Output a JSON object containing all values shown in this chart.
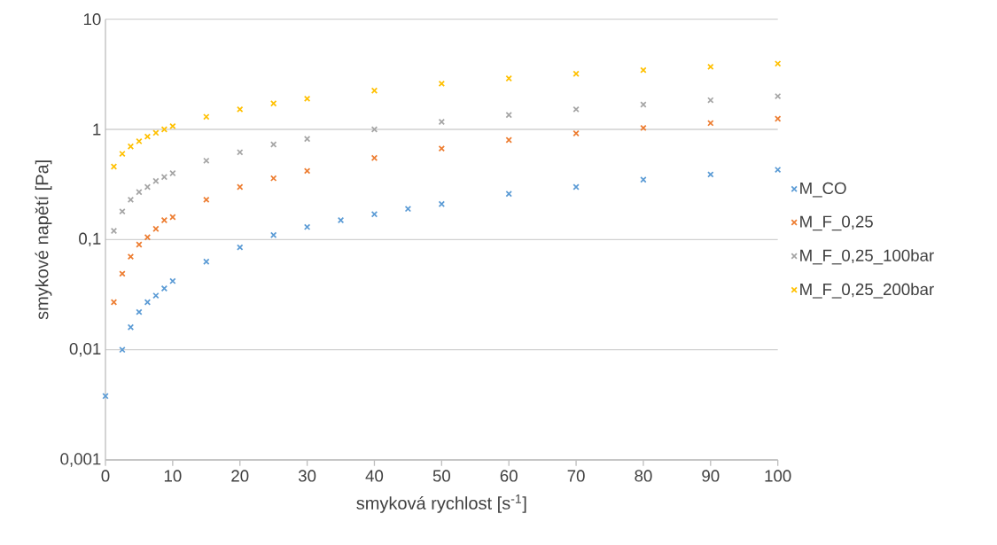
{
  "chart_data": {
    "type": "scatter",
    "xlabel": "smyková rychlost [s$^{-1}$]",
    "ylabel": "smykové napětí [Pa]",
    "xlim": [
      0,
      100
    ],
    "xticks": [
      0,
      10,
      20,
      30,
      40,
      50,
      60,
      70,
      80,
      90,
      100
    ],
    "ylim": [
      0.001,
      10
    ],
    "yticks": [
      {
        "value": 0.001,
        "label": "0,001"
      },
      {
        "value": 0.01,
        "label": "0,01"
      },
      {
        "value": 0.1,
        "label": "0,1"
      },
      {
        "value": 1,
        "label": "1"
      },
      {
        "value": 10,
        "label": "10"
      }
    ],
    "log": "y",
    "grid": "y",
    "legend": "right",
    "marker": "cross",
    "series": [
      {
        "name": "M_CO",
        "color": "#5b9bd5",
        "x": [
          0,
          2.5,
          3.75,
          5,
          6.25,
          7.5,
          8.75,
          10,
          15,
          20,
          25,
          30,
          35,
          40,
          45,
          50,
          60,
          70,
          80,
          90,
          100
        ],
        "values": [
          0.0038,
          0.01,
          0.016,
          0.022,
          0.027,
          0.031,
          0.036,
          0.042,
          0.063,
          0.085,
          0.11,
          0.13,
          0.15,
          0.17,
          0.19,
          0.21,
          0.26,
          0.3,
          0.35,
          0.39,
          0.43
        ]
      },
      {
        "name": "M_F_0,25",
        "color": "#ed7d31",
        "x": [
          1.25,
          2.5,
          3.75,
          5,
          6.25,
          7.5,
          8.75,
          10,
          15,
          20,
          25,
          30,
          40,
          50,
          60,
          70,
          80,
          90,
          100
        ],
        "values": [
          0.027,
          0.049,
          0.07,
          0.09,
          0.105,
          0.125,
          0.15,
          0.16,
          0.23,
          0.3,
          0.36,
          0.42,
          0.55,
          0.67,
          0.8,
          0.92,
          1.03,
          1.14,
          1.25
        ]
      },
      {
        "name": "M_F_0,25_100bar",
        "color": "#a5a5a5",
        "x": [
          1.25,
          2.5,
          3.75,
          5,
          6.25,
          7.5,
          8.75,
          10,
          15,
          20,
          25,
          30,
          40,
          50,
          60,
          70,
          80,
          90,
          100
        ],
        "values": [
          0.12,
          0.18,
          0.23,
          0.27,
          0.3,
          0.34,
          0.37,
          0.4,
          0.52,
          0.62,
          0.73,
          0.82,
          1.0,
          1.17,
          1.35,
          1.52,
          1.68,
          1.84,
          2.0
        ]
      },
      {
        "name": "M_F_0,25_200bar",
        "color": "#ffc000",
        "x": [
          1.25,
          2.5,
          3.75,
          5,
          6.25,
          7.5,
          8.75,
          10,
          15,
          20,
          25,
          30,
          40,
          50,
          60,
          70,
          80,
          90,
          100
        ],
        "values": [
          0.46,
          0.6,
          0.7,
          0.78,
          0.86,
          0.93,
          1.0,
          1.07,
          1.3,
          1.52,
          1.72,
          1.9,
          2.25,
          2.6,
          2.9,
          3.2,
          3.45,
          3.7,
          3.95
        ]
      }
    ]
  }
}
